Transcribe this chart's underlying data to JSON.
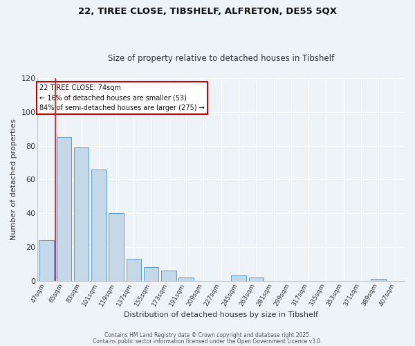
{
  "title1": "22, TIREE CLOSE, TIBSHELF, ALFRETON, DE55 5QX",
  "title2": "Size of property relative to detached houses in Tibshelf",
  "xlabel": "Distribution of detached houses by size in Tibshelf",
  "ylabel": "Number of detached properties",
  "bar_labels": [
    "47sqm",
    "65sqm",
    "83sqm",
    "101sqm",
    "119sqm",
    "137sqm",
    "155sqm",
    "173sqm",
    "191sqm",
    "209sqm",
    "227sqm",
    "245sqm",
    "263sqm",
    "281sqm",
    "299sqm",
    "317sqm",
    "335sqm",
    "353sqm",
    "371sqm",
    "389sqm",
    "407sqm"
  ],
  "bar_values": [
    24,
    85,
    79,
    66,
    40,
    13,
    8,
    6,
    2,
    0,
    0,
    3,
    2,
    0,
    0,
    0,
    0,
    0,
    0,
    1,
    0
  ],
  "bar_color": "#c5d8e8",
  "bar_edge_color": "#5b9bd5",
  "background_color": "#eef3f8",
  "grid_color": "#ffffff",
  "ylim": [
    0,
    120
  ],
  "yticks": [
    0,
    20,
    40,
    60,
    80,
    100,
    120
  ],
  "red_line_x": 0.5,
  "annotation_title": "22 TIREE CLOSE: 74sqm",
  "annotation_line1": "← 16% of detached houses are smaller (53)",
  "annotation_line2": "84% of semi-detached houses are larger (275) →",
  "annotation_box_color": "#ffffff",
  "annotation_box_edge_color": "#cc0000",
  "footer1": "Contains HM Land Registry data © Crown copyright and database right 2025.",
  "footer2": "Contains public sector information licensed under the Open Government Licence v3.0.",
  "bar_width": 0.85
}
